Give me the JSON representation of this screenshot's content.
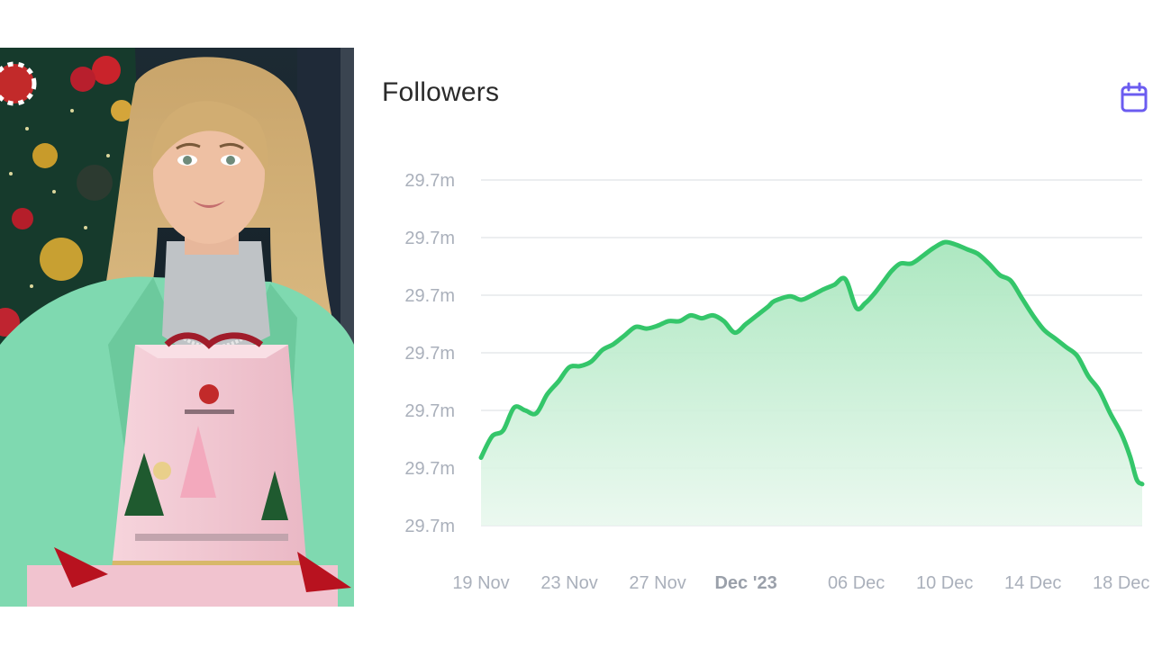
{
  "colors": {
    "line": "#34c66a",
    "area_top": "#a8e6bd",
    "area_bottom": "#e9f8ee",
    "grid": "#e6e8eb",
    "tick_text": "#aab0bb",
    "calendar_icon": "#6b5cf0",
    "blazer": "#7fd9b0",
    "gift_box": "#f3c9d3"
  },
  "photo": {
    "icon": "photo-of-woman-holding-pink-gift-box"
  },
  "header": {
    "title": "Followers",
    "calendar_icon": "calendar-icon"
  },
  "chart_data": {
    "type": "area",
    "title": "Followers",
    "xlabel": "",
    "ylabel": "",
    "y_tick_labels": [
      "29.7m",
      "29.7m",
      "29.7m",
      "29.7m",
      "29.7m",
      "29.7m",
      "29.7m"
    ],
    "x_tick_labels": [
      {
        "label": "19 Nov",
        "day": 0,
        "bold": false
      },
      {
        "label": "23 Nov",
        "day": 4,
        "bold": false
      },
      {
        "label": "27 Nov",
        "day": 8,
        "bold": false
      },
      {
        "label": "Dec '23",
        "day": 12,
        "bold": true
      },
      {
        "label": "06 Dec",
        "day": 17,
        "bold": false
      },
      {
        "label": "10 Dec",
        "day": 21,
        "bold": false
      },
      {
        "label": "14 Dec",
        "day": 25,
        "bold": false
      },
      {
        "label": "18 Dec",
        "day": 29,
        "bold": false
      }
    ],
    "ylim": [
      0,
      6
    ],
    "grid": true,
    "series": [
      {
        "x": [
          0,
          0.5,
          1,
          1.5,
          2,
          2.5,
          3,
          3.5,
          4,
          4.5,
          5,
          5.5,
          6,
          6.5,
          7,
          7.5,
          8,
          8.5,
          9,
          9.5,
          10,
          10.5,
          11,
          11.5,
          12,
          12.5,
          13,
          13.3,
          14,
          14.5,
          15,
          15.5,
          16,
          16.5,
          17,
          17.4,
          17.8,
          18.2,
          18.6,
          19,
          19.5,
          20,
          20.5,
          21,
          21.5,
          22,
          22.5,
          23,
          23.5,
          24,
          24.5,
          25,
          25.5,
          26,
          26.5,
          27,
          27.5,
          28,
          28.5,
          29,
          29.4,
          29.7,
          29.95
        ],
        "values": [
          1.18,
          1.55,
          1.65,
          2.05,
          2.0,
          1.95,
          2.28,
          2.5,
          2.75,
          2.77,
          2.85,
          3.05,
          3.15,
          3.3,
          3.45,
          3.42,
          3.47,
          3.55,
          3.55,
          3.65,
          3.6,
          3.65,
          3.55,
          3.35,
          3.5,
          3.65,
          3.8,
          3.9,
          3.98,
          3.92,
          4.0,
          4.1,
          4.18,
          4.28,
          3.78,
          3.86,
          4.02,
          4.22,
          4.42,
          4.55,
          4.55,
          4.68,
          4.82,
          4.92,
          4.88,
          4.8,
          4.72,
          4.55,
          4.35,
          4.25,
          3.95,
          3.65,
          3.4,
          3.25,
          3.1,
          2.95,
          2.6,
          2.35,
          1.95,
          1.6,
          1.2,
          0.8,
          0.72
        ]
      }
    ]
  }
}
